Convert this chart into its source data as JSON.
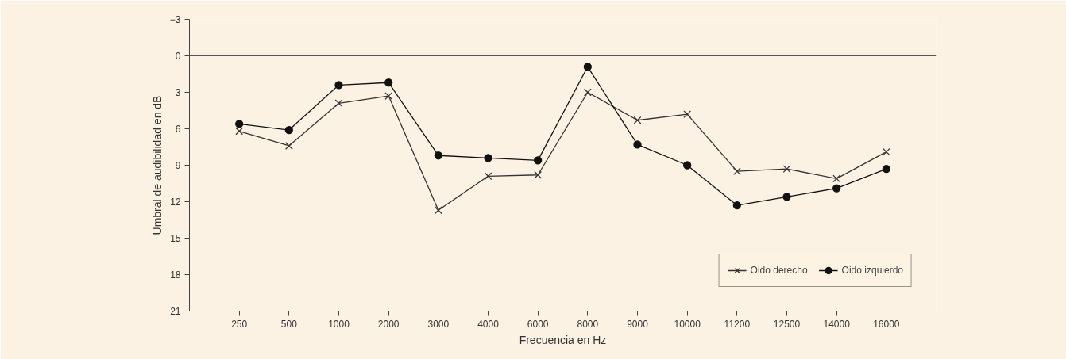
{
  "chart_data": {
    "type": "line",
    "xlabel": "Frecuencia en Hz",
    "ylabel": "Umbral de audibilidad en dB",
    "categories": [
      "250",
      "500",
      "1000",
      "2000",
      "3000",
      "4000",
      "6000",
      "8000",
      "9000",
      "10000",
      "11200",
      "12500",
      "14000",
      "16000"
    ],
    "series": [
      {
        "name": "Oido derecho",
        "color": "#333333",
        "marker": "cross",
        "values": [
          6.2,
          7.4,
          3.9,
          3.3,
          12.7,
          9.9,
          9.8,
          3.0,
          5.3,
          4.8,
          9.5,
          9.3,
          10.1,
          7.9
        ]
      },
      {
        "name": "Oido izquierdo",
        "color": "#111111",
        "marker": "circle",
        "values": [
          5.6,
          6.1,
          2.4,
          2.2,
          8.2,
          8.4,
          8.6,
          0.9,
          7.3,
          9.0,
          12.3,
          11.6,
          10.9,
          9.3
        ]
      }
    ],
    "ylim": [
      21,
      -3
    ],
    "yticks": [
      -3,
      0,
      3,
      6,
      9,
      12,
      15,
      18,
      21
    ],
    "ref_lines": [
      {
        "axis": "y",
        "value": 0,
        "color": "#555555"
      }
    ],
    "grid": false,
    "legend": "bottom right",
    "line_style": "solid"
  }
}
